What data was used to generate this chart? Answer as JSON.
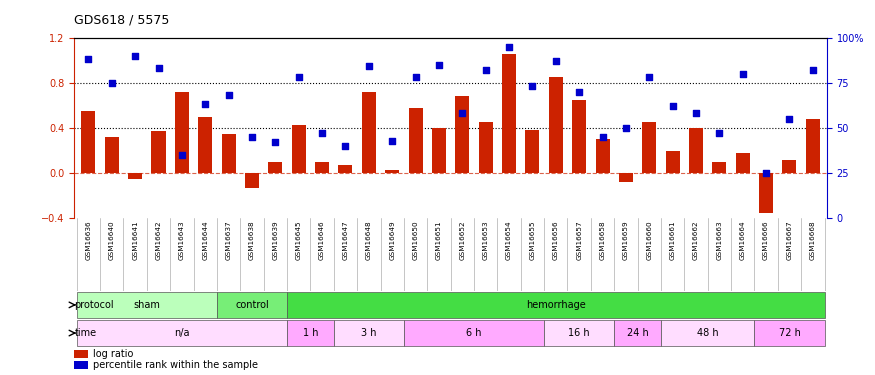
{
  "title": "GDS618 / 5575",
  "samples": [
    "GSM16636",
    "GSM16640",
    "GSM16641",
    "GSM16642",
    "GSM16643",
    "GSM16644",
    "GSM16637",
    "GSM16638",
    "GSM16639",
    "GSM16645",
    "GSM16646",
    "GSM16647",
    "GSM16648",
    "GSM16649",
    "GSM16650",
    "GSM16651",
    "GSM16652",
    "GSM16653",
    "GSM16654",
    "GSM16655",
    "GSM16656",
    "GSM16657",
    "GSM16658",
    "GSM16659",
    "GSM16660",
    "GSM16661",
    "GSM16662",
    "GSM16663",
    "GSM16664",
    "GSM16666",
    "GSM16667",
    "GSM16668"
  ],
  "log_ratio": [
    0.55,
    0.32,
    -0.05,
    0.37,
    0.72,
    0.5,
    0.35,
    -0.13,
    0.1,
    0.43,
    0.1,
    0.07,
    0.72,
    0.03,
    0.58,
    0.4,
    0.68,
    0.45,
    1.05,
    0.38,
    0.85,
    0.65,
    0.3,
    -0.08,
    0.45,
    0.2,
    0.4,
    0.1,
    0.18,
    -0.35,
    0.12,
    0.48
  ],
  "percentile": [
    88,
    75,
    90,
    83,
    35,
    63,
    68,
    45,
    42,
    78,
    47,
    40,
    84,
    43,
    78,
    85,
    58,
    82,
    95,
    73,
    87,
    70,
    45,
    50,
    78,
    62,
    58,
    47,
    80,
    25,
    55,
    82
  ],
  "protocol_groups": [
    {
      "label": "sham",
      "start": 0,
      "end": 6,
      "color": "#bbffbb"
    },
    {
      "label": "control",
      "start": 6,
      "end": 9,
      "color": "#77ee77"
    },
    {
      "label": "hemorrhage",
      "start": 9,
      "end": 32,
      "color": "#44dd44"
    }
  ],
  "time_groups": [
    {
      "label": "n/a",
      "start": 0,
      "end": 9,
      "color": "#ffddff"
    },
    {
      "label": "1 h",
      "start": 9,
      "end": 11,
      "color": "#ffaaff"
    },
    {
      "label": "3 h",
      "start": 11,
      "end": 14,
      "color": "#ffddff"
    },
    {
      "label": "6 h",
      "start": 14,
      "end": 20,
      "color": "#ffaaff"
    },
    {
      "label": "16 h",
      "start": 20,
      "end": 23,
      "color": "#ffddff"
    },
    {
      "label": "24 h",
      "start": 23,
      "end": 25,
      "color": "#ffaaff"
    },
    {
      "label": "48 h",
      "start": 25,
      "end": 29,
      "color": "#ffddff"
    },
    {
      "label": "72 h",
      "start": 29,
      "end": 32,
      "color": "#ffaaff"
    }
  ],
  "bar_color": "#cc2200",
  "dot_color": "#0000cc",
  "left_ylim": [
    -0.4,
    1.2
  ],
  "right_ylim": [
    0,
    100
  ],
  "left_yticks": [
    -0.4,
    0.0,
    0.4,
    0.8,
    1.2
  ],
  "right_yticks": [
    0,
    25,
    50,
    75,
    100
  ],
  "right_yticklabels": [
    "0",
    "25",
    "50",
    "75",
    "100%"
  ],
  "background_color": "#ffffff"
}
